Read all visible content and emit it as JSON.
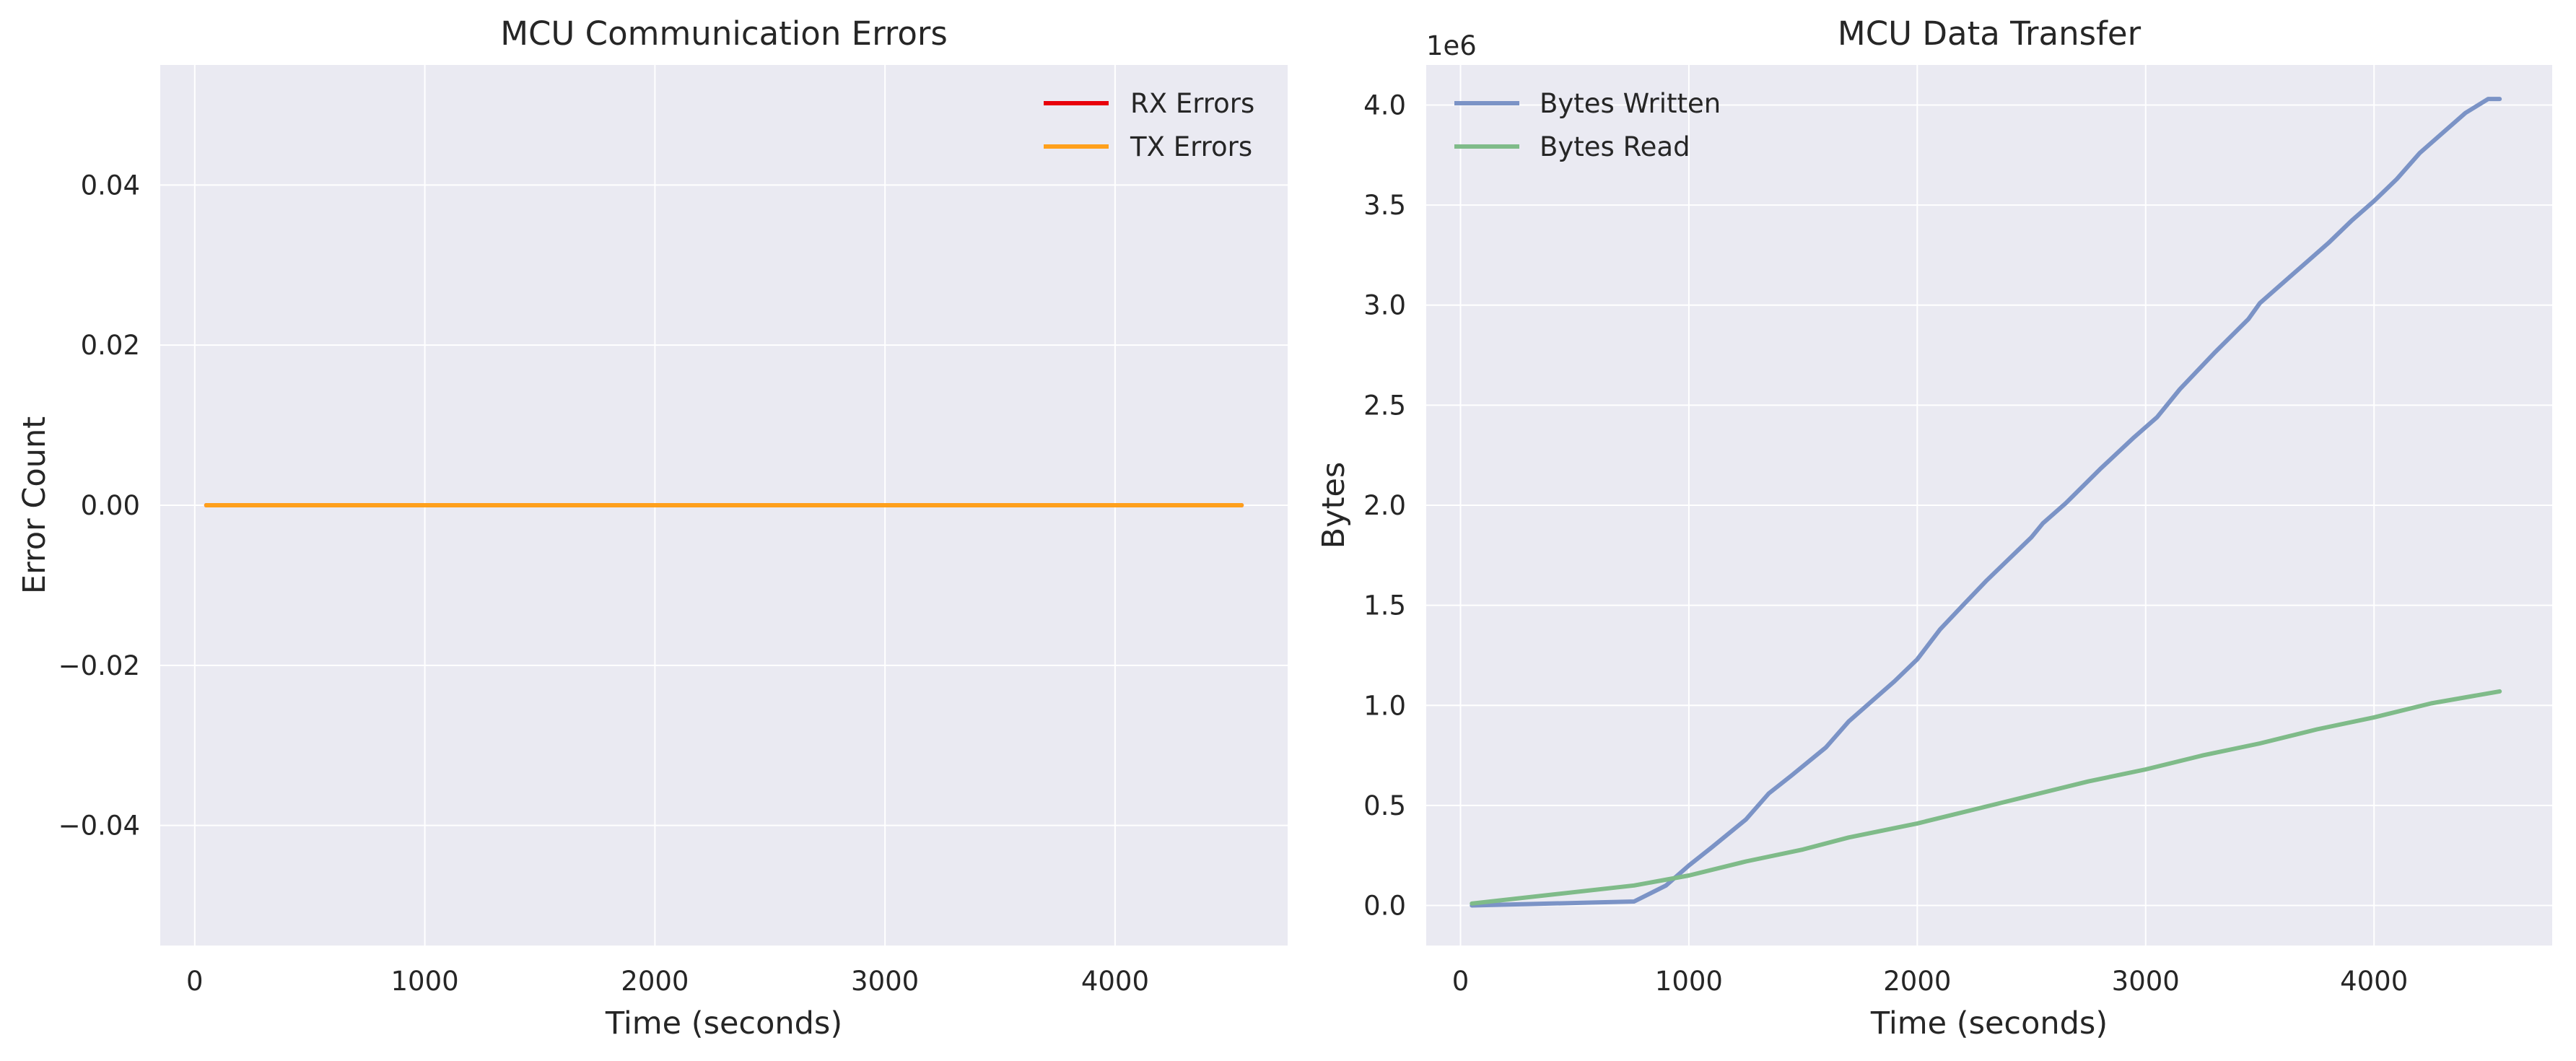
{
  "chart_data": [
    {
      "type": "line",
      "title": "MCU Communication Errors",
      "xlabel": "Time (seconds)",
      "ylabel": "Error Count",
      "xlim": [
        -150,
        4750
      ],
      "ylim": [
        -0.055,
        0.055
      ],
      "xticks": [
        0,
        1000,
        2000,
        3000,
        4000
      ],
      "xtick_labels": [
        "0",
        "1000",
        "2000",
        "3000",
        "4000"
      ],
      "yticks": [
        0.04,
        0.02,
        0.0,
        -0.02,
        -0.04
      ],
      "ytick_labels": [
        "0.04",
        "0.02",
        "0.00",
        "−0.02",
        "−0.04"
      ],
      "grid": true,
      "legend": "top-right",
      "series": [
        {
          "name": "RX Errors",
          "color": "#e8000b",
          "x": [
            50,
            4550
          ],
          "y": [
            0,
            0
          ]
        },
        {
          "name": "TX Errors",
          "color": "#ffa01c",
          "x": [
            50,
            4550
          ],
          "y": [
            0,
            0
          ]
        }
      ]
    },
    {
      "type": "line",
      "title": "MCU Data Transfer",
      "xlabel": "Time (seconds)",
      "ylabel": "Bytes",
      "offset_text": "1e6",
      "xlim": [
        -150,
        4780
      ],
      "ylim": [
        -200000,
        4200000
      ],
      "xticks": [
        0,
        1000,
        2000,
        3000,
        4000
      ],
      "xtick_labels": [
        "0",
        "1000",
        "2000",
        "3000",
        "4000"
      ],
      "yticks": [
        0,
        500000,
        1000000,
        1500000,
        2000000,
        2500000,
        3000000,
        3500000,
        4000000
      ],
      "ytick_labels": [
        "0.0",
        "0.5",
        "1.0",
        "1.5",
        "2.0",
        "2.5",
        "3.0",
        "3.5",
        "4.0"
      ],
      "grid": true,
      "legend": "top-left",
      "series": [
        {
          "name": "Bytes Written",
          "color": "#7b93c6",
          "x": [
            50,
            760,
            900,
            1000,
            1100,
            1250,
            1350,
            1450,
            1600,
            1700,
            1800,
            1900,
            2000,
            2100,
            2200,
            2300,
            2400,
            2500,
            2550,
            2650,
            2800,
            2950,
            3050,
            3150,
            3300,
            3450,
            3500,
            3600,
            3700,
            3800,
            3900,
            4000,
            4100,
            4200,
            4300,
            4400,
            4500,
            4550
          ],
          "y": [
            0,
            20000,
            100000,
            200000,
            290000,
            430000,
            560000,
            650000,
            790000,
            920000,
            1020000,
            1120000,
            1230000,
            1380000,
            1500000,
            1620000,
            1730000,
            1840000,
            1910000,
            2010000,
            2180000,
            2340000,
            2440000,
            2580000,
            2760000,
            2930000,
            3010000,
            3110000,
            3210000,
            3310000,
            3420000,
            3520000,
            3630000,
            3760000,
            3860000,
            3960000,
            4030000,
            4030000
          ]
        },
        {
          "name": "Bytes Read",
          "color": "#7fbb89",
          "x": [
            50,
            760,
            1000,
            1250,
            1500,
            1700,
            2000,
            2250,
            2500,
            2750,
            3000,
            3250,
            3500,
            3750,
            4000,
            4250,
            4550
          ],
          "y": [
            10000,
            100000,
            150000,
            220000,
            280000,
            340000,
            410000,
            480000,
            550000,
            620000,
            680000,
            750000,
            810000,
            880000,
            940000,
            1010000,
            1070000
          ]
        }
      ]
    }
  ]
}
